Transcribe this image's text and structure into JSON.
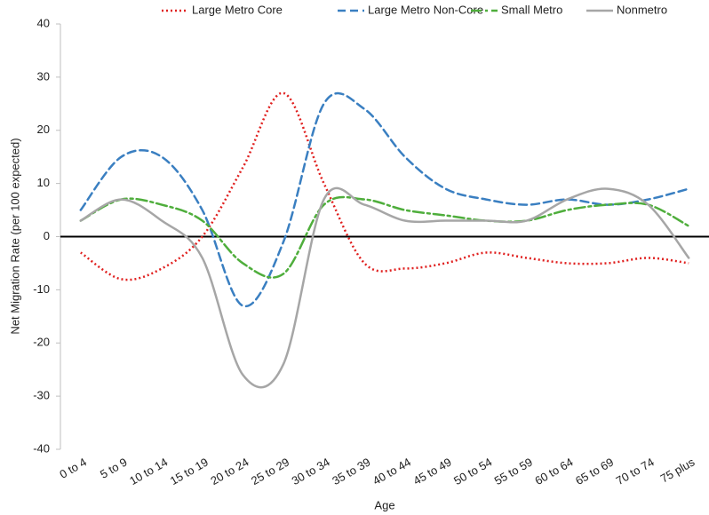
{
  "chart_data": {
    "type": "line",
    "x_label": "Age",
    "y_label": "Net Migration Rate (per 100 expected)",
    "categories": [
      "0 to 4",
      "5 to 9",
      "10 to 14",
      "15 to 19",
      "20 to 24",
      "25 to 29",
      "30 to 34",
      "35 to 39",
      "40 to 44",
      "45 to 49",
      "50 to 54",
      "55 to 59",
      "60 to 64",
      "65 to 69",
      "70 to 74",
      "75 plus"
    ],
    "series": [
      {
        "name": "Large Metro Core",
        "color": "#e0201f",
        "dash": "dotted",
        "values": [
          -3,
          -8,
          -6,
          0,
          13,
          27,
          10,
          -5,
          -6,
          -5,
          -3,
          -4,
          -5,
          -5,
          -4,
          -5
        ]
      },
      {
        "name": "Large Metro Non-Core",
        "color": "#3a7fc1",
        "dash": "dashed",
        "values": [
          5,
          15,
          15,
          5,
          -13,
          -1,
          25,
          24,
          15,
          9,
          7,
          6,
          7,
          6,
          7,
          9
        ]
      },
      {
        "name": "Small Metro",
        "color": "#4fae3c",
        "dash": "dashdot",
        "values": [
          3,
          7,
          6,
          3,
          -5,
          -7,
          6,
          7,
          5,
          4,
          3,
          3,
          5,
          6,
          6,
          2
        ]
      },
      {
        "name": "Nonmetro",
        "color": "#a6a6a6",
        "dash": "solid",
        "values": [
          3,
          7,
          3,
          -4,
          -26,
          -24,
          7,
          6,
          3,
          3,
          3,
          3,
          7,
          9,
          6,
          -4
        ]
      }
    ],
    "ylim": [
      -40,
      40
    ],
    "yticks": [
      -40,
      -30,
      -20,
      -10,
      0,
      10,
      20,
      30,
      40
    ],
    "grid": false,
    "legend": "top"
  }
}
